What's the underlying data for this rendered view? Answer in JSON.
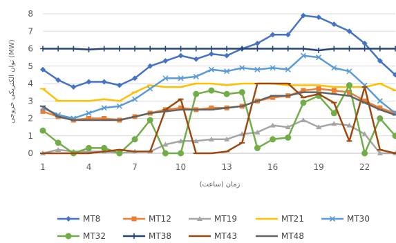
{
  "chart_data": {
    "type": "line",
    "title": "",
    "xlabel": "زمان (ساعت)",
    "ylabel": "توان الکتریکی خروجی (MW)",
    "x": [
      1,
      2,
      3,
      4,
      5,
      6,
      7,
      8,
      9,
      10,
      11,
      12,
      13,
      14,
      15,
      16,
      17,
      18,
      19,
      20,
      21,
      22,
      23,
      24
    ],
    "x_ticks": [
      1,
      4,
      7,
      10,
      13,
      16,
      19,
      22
    ],
    "ylim": [
      0,
      8
    ],
    "y_ticks": [
      0,
      1,
      2,
      3,
      4,
      5,
      6,
      7,
      8
    ],
    "grid": "horizontal",
    "legend_position": "bottom",
    "series": [
      {
        "name": "MT8",
        "color": "#4472C4",
        "marker": "diamond",
        "values": [
          4.8,
          4.2,
          3.8,
          4.1,
          4.1,
          3.9,
          4.3,
          5.0,
          5.3,
          5.6,
          5.4,
          5.7,
          5.6,
          6.0,
          6.3,
          6.8,
          6.8,
          7.9,
          7.8,
          7.4,
          7.0,
          6.3,
          5.3,
          4.5
        ]
      },
      {
        "name": "MT12",
        "color": "#ED7D31",
        "marker": "square",
        "values": [
          2.4,
          2.1,
          1.9,
          2.0,
          2.0,
          1.9,
          2.1,
          2.3,
          2.5,
          2.6,
          2.5,
          2.6,
          2.6,
          2.7,
          3.0,
          3.2,
          3.3,
          3.6,
          3.7,
          3.6,
          3.5,
          3.0,
          2.6,
          2.3
        ]
      },
      {
        "name": "MT19",
        "color": "#A5A5A5",
        "marker": "triangle",
        "values": [
          0.0,
          0.2,
          0.1,
          0.1,
          0.1,
          0.0,
          0.1,
          0.1,
          0.5,
          0.7,
          0.7,
          0.8,
          0.8,
          1.1,
          1.2,
          1.6,
          1.5,
          1.9,
          1.5,
          1.7,
          1.6,
          1.1,
          0.0,
          0.0
        ]
      },
      {
        "name": "MT21",
        "color": "#FFC000",
        "marker": "dash",
        "values": [
          3.7,
          3.0,
          3.0,
          3.0,
          3.1,
          3.0,
          3.5,
          3.9,
          3.8,
          3.8,
          4.0,
          4.0,
          3.9,
          4.0,
          4.0,
          4.0,
          3.9,
          3.9,
          3.9,
          3.8,
          3.8,
          3.8,
          4.0,
          3.6
        ]
      },
      {
        "name": "MT30",
        "color": "#5B9BD5",
        "marker": "x",
        "values": [
          2.6,
          2.2,
          2.0,
          2.3,
          2.6,
          2.7,
          3.1,
          3.7,
          4.3,
          4.3,
          4.4,
          4.8,
          4.7,
          4.9,
          4.8,
          4.9,
          4.8,
          5.6,
          5.5,
          4.9,
          4.7,
          3.9,
          3.0,
          2.3
        ]
      },
      {
        "name": "MT32",
        "color": "#70AD47",
        "marker": "circle",
        "values": [
          1.3,
          0.6,
          0.0,
          0.3,
          0.3,
          0.0,
          0.8,
          1.9,
          0.0,
          0.0,
          3.4,
          3.6,
          3.4,
          3.5,
          0.3,
          0.8,
          0.9,
          2.9,
          3.3,
          2.3,
          3.9,
          0.0,
          2.0,
          1.0
        ]
      },
      {
        "name": "MT38",
        "color": "#264478",
        "marker": "plus",
        "values": [
          6.0,
          6.0,
          6.0,
          5.95,
          6.0,
          6.0,
          6.0,
          6.0,
          6.0,
          6.0,
          6.0,
          6.0,
          6.0,
          6.0,
          6.0,
          6.0,
          6.0,
          6.0,
          5.9,
          6.0,
          6.0,
          6.0,
          6.0,
          6.0
        ]
      },
      {
        "name": "MT43",
        "color": "#9E480E",
        "marker": "dash",
        "values": [
          0.0,
          0.0,
          0.0,
          0.0,
          0.1,
          0.2,
          0.1,
          0.1,
          2.5,
          3.1,
          0.0,
          0.0,
          0.1,
          0.6,
          4.0,
          4.0,
          4.0,
          3.2,
          3.4,
          2.9,
          0.7,
          3.8,
          0.2,
          0.0
        ]
      },
      {
        "name": "MT48",
        "color": "#636363",
        "marker": "dash",
        "values": [
          2.7,
          2.1,
          1.9,
          1.9,
          1.9,
          1.9,
          2.1,
          2.3,
          2.4,
          2.5,
          2.5,
          2.5,
          2.6,
          2.7,
          3.0,
          3.3,
          3.3,
          3.5,
          3.5,
          3.4,
          3.3,
          2.9,
          2.5,
          2.2
        ]
      }
    ]
  }
}
